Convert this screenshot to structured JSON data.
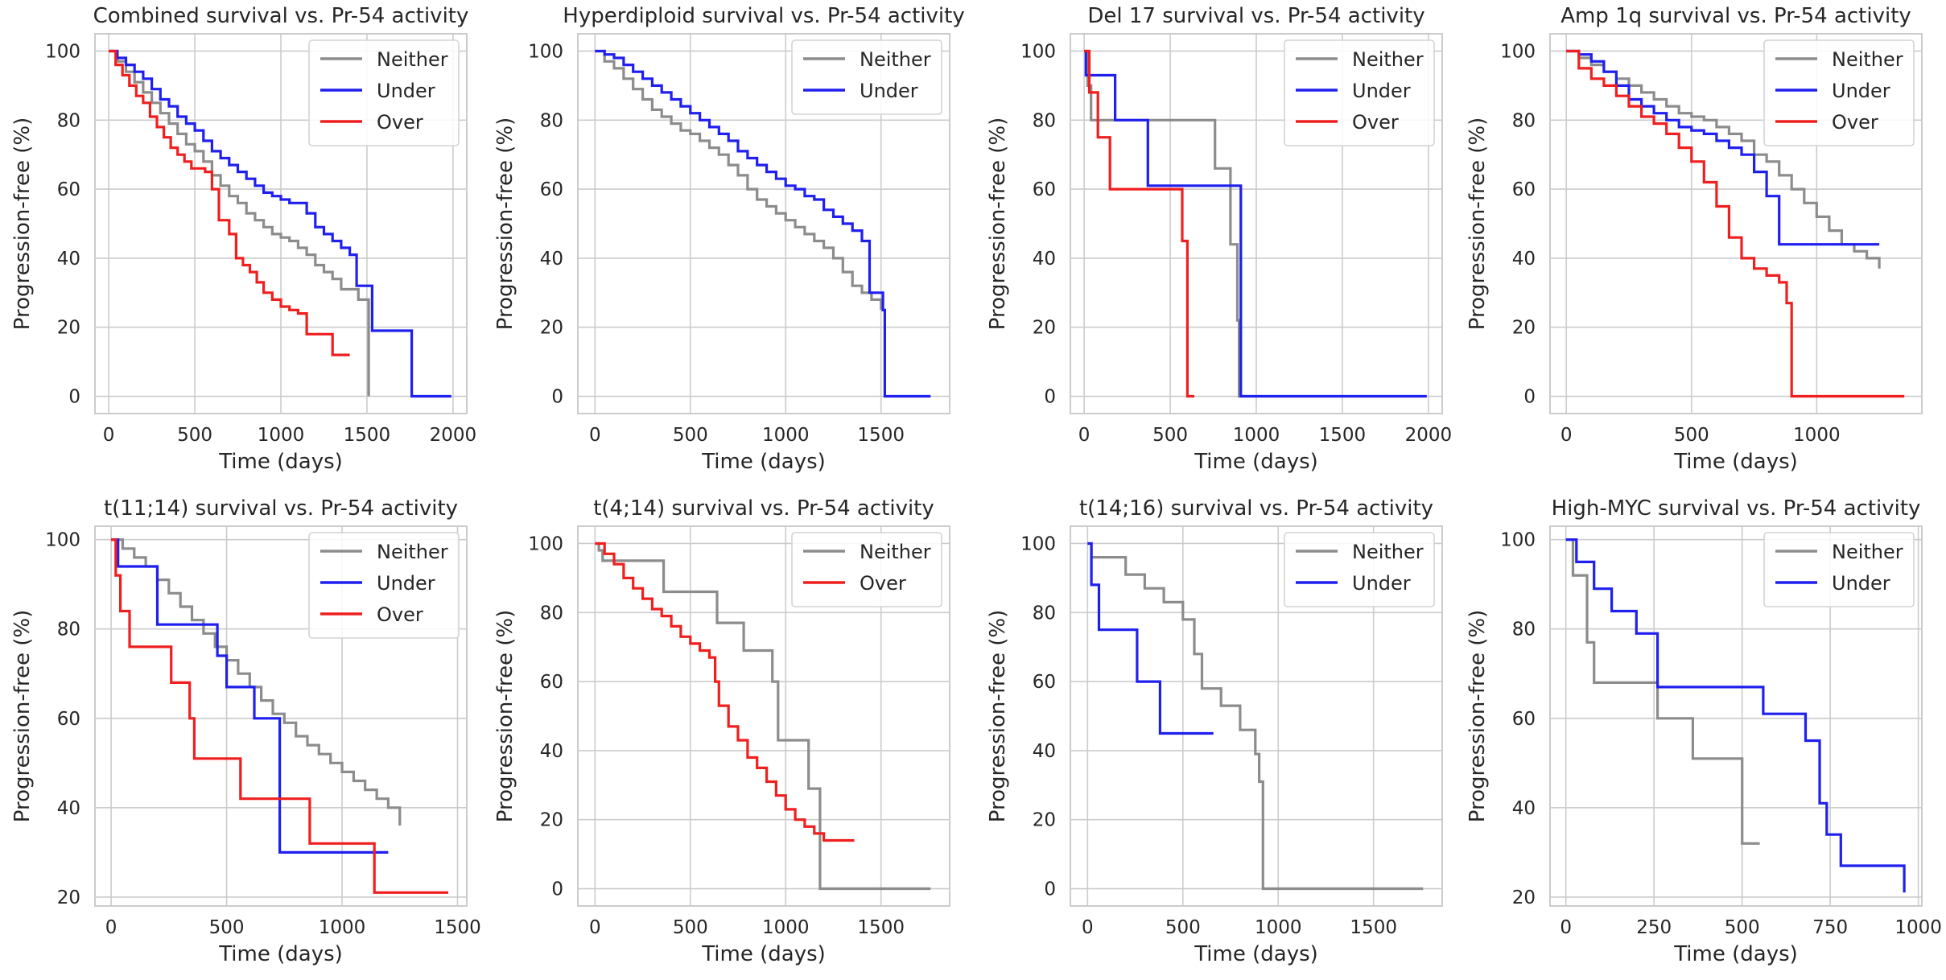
{
  "colors": {
    "Neither": "#8c8c8c",
    "Under": "#1f1ff0",
    "Over": "#f01f1f",
    "grid": "#cccccc",
    "frame": "#cccccc"
  },
  "chart_data": [
    {
      "type": "line",
      "title": "Combined survival vs. Pr-54 activity",
      "xlabel": "Time (days)",
      "ylabel": "Progression-free (%)",
      "xlim": [
        -80,
        2080
      ],
      "ylim": [
        -5,
        105
      ],
      "xticks": [
        0,
        500,
        1000,
        1500,
        2000
      ],
      "yticks": [
        0,
        20,
        40,
        60,
        80,
        100
      ],
      "legend": "top-right",
      "series": [
        {
          "name": "Neither",
          "x": [
            0,
            50,
            100,
            150,
            200,
            250,
            300,
            350,
            400,
            450,
            500,
            550,
            600,
            650,
            700,
            750,
            800,
            850,
            900,
            950,
            1000,
            1050,
            1100,
            1150,
            1200,
            1250,
            1300,
            1350,
            1400,
            1450,
            1490,
            1510
          ],
          "y": [
            100,
            97,
            94,
            91,
            88,
            85,
            82,
            79,
            76,
            73,
            71,
            68,
            64,
            61,
            58,
            56,
            53,
            51,
            49,
            47,
            46,
            45,
            43,
            41,
            38,
            36,
            34,
            31,
            31,
            28,
            28,
            0
          ]
        },
        {
          "name": "Under",
          "x": [
            0,
            50,
            100,
            150,
            200,
            250,
            300,
            350,
            400,
            450,
            500,
            550,
            600,
            650,
            700,
            750,
            800,
            850,
            900,
            950,
            1000,
            1050,
            1100,
            1150,
            1200,
            1250,
            1300,
            1350,
            1400,
            1440,
            1460,
            1500,
            1530,
            1760,
            1990
          ],
          "y": [
            100,
            98,
            96,
            94,
            92,
            89,
            86,
            84,
            81,
            79,
            77,
            74,
            71,
            69,
            67,
            65,
            63,
            61,
            59,
            58,
            57,
            56,
            56,
            53,
            49,
            47,
            45,
            43,
            41,
            32,
            32,
            32,
            19,
            0,
            0
          ]
        },
        {
          "name": "Over",
          "x": [
            0,
            40,
            80,
            120,
            160,
            200,
            240,
            280,
            320,
            360,
            400,
            440,
            480,
            520,
            560,
            600,
            640,
            700,
            740,
            780,
            820,
            860,
            900,
            950,
            1000,
            1050,
            1100,
            1150,
            1200,
            1300,
            1400
          ],
          "y": [
            100,
            96,
            93,
            90,
            87,
            85,
            81,
            78,
            75,
            72,
            70,
            68,
            66,
            66,
            65,
            60,
            51,
            47,
            40,
            38,
            36,
            33,
            30,
            28,
            26,
            25,
            24,
            18,
            18,
            12,
            12
          ]
        }
      ]
    },
    {
      "type": "line",
      "title": "Hyperdiploid survival vs. Pr-54 activity",
      "xlabel": "Time (days)",
      "ylabel": "Progression-free (%)",
      "xlim": [
        -90,
        1860
      ],
      "ylim": [
        -5,
        105
      ],
      "xticks": [
        0,
        500,
        1000,
        1500
      ],
      "yticks": [
        0,
        20,
        40,
        60,
        80,
        100
      ],
      "legend": "top-right",
      "series": [
        {
          "name": "Neither",
          "x": [
            0,
            50,
            100,
            150,
            200,
            250,
            300,
            350,
            400,
            450,
            500,
            550,
            600,
            650,
            700,
            750,
            800,
            850,
            900,
            950,
            1000,
            1050,
            1100,
            1150,
            1200,
            1250,
            1300,
            1350,
            1400,
            1450,
            1500
          ],
          "y": [
            100,
            97,
            95,
            92,
            89,
            86,
            83,
            81,
            79,
            77,
            76,
            74,
            72,
            70,
            67,
            64,
            60,
            57,
            55,
            53,
            51,
            49,
            47,
            45,
            43,
            40,
            36,
            32,
            30,
            28,
            25
          ]
        },
        {
          "name": "Under",
          "x": [
            0,
            50,
            100,
            150,
            200,
            250,
            300,
            350,
            400,
            450,
            500,
            550,
            600,
            650,
            700,
            750,
            800,
            850,
            900,
            950,
            1000,
            1050,
            1100,
            1150,
            1200,
            1250,
            1300,
            1350,
            1400,
            1440,
            1480,
            1510,
            1520,
            1760
          ],
          "y": [
            100,
            99,
            98,
            96,
            94,
            92,
            90,
            88,
            86,
            84,
            82,
            80,
            78,
            76,
            74,
            71,
            69,
            67,
            65,
            63,
            61,
            60,
            58,
            57,
            54,
            52,
            50,
            48,
            45,
            30,
            30,
            25,
            0,
            0
          ]
        }
      ]
    },
    {
      "type": "line",
      "title": "Del 17 survival vs. Pr-54 activity",
      "xlabel": "Time (days)",
      "ylabel": "Progression-free (%)",
      "xlim": [
        -80,
        2080
      ],
      "ylim": [
        -5,
        105
      ],
      "xticks": [
        0,
        500,
        1000,
        1500,
        2000
      ],
      "yticks": [
        0,
        20,
        40,
        60,
        80,
        100
      ],
      "legend": "top-right",
      "series": [
        {
          "name": "Neither",
          "x": [
            0,
            20,
            40,
            700,
            760,
            850,
            890,
            900,
            920
          ],
          "y": [
            100,
            90,
            80,
            80,
            66,
            44,
            22,
            0,
            0
          ]
        },
        {
          "name": "Under",
          "x": [
            0,
            10,
            20,
            100,
            180,
            350,
            370,
            900,
            910,
            1990
          ],
          "y": [
            100,
            93,
            93,
            93,
            80,
            80,
            61,
            61,
            0,
            0
          ]
        },
        {
          "name": "Over",
          "x": [
            0,
            30,
            80,
            150,
            360,
            570,
            600,
            640
          ],
          "y": [
            100,
            88,
            75,
            60,
            60,
            45,
            0,
            0
          ]
        }
      ]
    },
    {
      "type": "line",
      "title": "Amp 1q survival vs. Pr-54 activity",
      "xlabel": "Time (days)",
      "ylabel": "Progression-free (%)",
      "xlim": [
        -65,
        1420
      ],
      "ylim": [
        -5,
        105
      ],
      "xticks": [
        0,
        500,
        1000
      ],
      "yticks": [
        0,
        20,
        40,
        60,
        80,
        100
      ],
      "legend": "top-right",
      "series": [
        {
          "name": "Neither",
          "x": [
            0,
            50,
            100,
            150,
            200,
            250,
            300,
            350,
            400,
            450,
            500,
            550,
            600,
            650,
            700,
            750,
            800,
            850,
            900,
            950,
            1000,
            1050,
            1100,
            1150,
            1200,
            1250
          ],
          "y": [
            100,
            98,
            96,
            94,
            92,
            90,
            88,
            86,
            84,
            82,
            81,
            80,
            78,
            76,
            74,
            70,
            68,
            64,
            60,
            56,
            52,
            48,
            44,
            42,
            40,
            37
          ]
        },
        {
          "name": "Under",
          "x": [
            0,
            50,
            100,
            150,
            200,
            250,
            300,
            350,
            400,
            450,
            500,
            550,
            600,
            650,
            700,
            750,
            800,
            850,
            900,
            950,
            1000,
            1050,
            1100,
            1150,
            1200,
            1250
          ],
          "y": [
            100,
            99,
            97,
            94,
            90,
            86,
            84,
            82,
            80,
            78,
            77,
            76,
            74,
            72,
            70,
            65,
            58,
            44,
            44,
            44,
            44,
            44,
            44,
            44,
            44,
            44
          ]
        },
        {
          "name": "Over",
          "x": [
            0,
            50,
            100,
            150,
            200,
            250,
            300,
            350,
            400,
            450,
            500,
            550,
            600,
            650,
            700,
            750,
            800,
            850,
            880,
            900,
            1000,
            1100,
            1200,
            1300,
            1350
          ],
          "y": [
            100,
            95,
            92,
            90,
            87,
            84,
            81,
            79,
            76,
            72,
            68,
            62,
            55,
            46,
            40,
            37,
            35,
            33,
            27,
            0,
            0,
            0,
            0,
            0,
            0
          ]
        }
      ]
    },
    {
      "type": "line",
      "title": "t(11;14) survival vs. Pr-54 activity",
      "xlabel": "Time (days)",
      "ylabel": "Progression-free (%)",
      "xlim": [
        -70,
        1540
      ],
      "ylim": [
        18,
        103
      ],
      "xticks": [
        0,
        500,
        1000,
        1500
      ],
      "yticks": [
        20,
        40,
        60,
        80,
        100
      ],
      "legend": "top-right",
      "series": [
        {
          "name": "Neither",
          "x": [
            0,
            50,
            100,
            150,
            200,
            250,
            300,
            350,
            400,
            450,
            500,
            550,
            600,
            650,
            700,
            750,
            800,
            850,
            900,
            950,
            1000,
            1050,
            1100,
            1150,
            1200,
            1250
          ],
          "y": [
            100,
            98,
            96,
            94,
            91,
            88,
            85,
            82,
            79,
            76,
            73,
            70,
            67,
            64,
            61,
            59,
            56,
            54,
            52,
            50,
            48,
            46,
            44,
            42,
            40,
            36
          ]
        },
        {
          "name": "Under",
          "x": [
            0,
            30,
            60,
            180,
            200,
            440,
            460,
            500,
            600,
            620,
            720,
            730,
            1200
          ],
          "y": [
            100,
            94,
            94,
            94,
            81,
            81,
            74,
            67,
            67,
            60,
            60,
            30,
            30
          ]
        },
        {
          "name": "Over",
          "x": [
            0,
            20,
            40,
            80,
            150,
            260,
            340,
            360,
            540,
            560,
            840,
            860,
            1130,
            1140,
            1460
          ],
          "y": [
            100,
            92,
            84,
            76,
            76,
            68,
            60,
            51,
            51,
            42,
            42,
            32,
            32,
            21,
            21
          ]
        }
      ]
    },
    {
      "type": "line",
      "title": "t(4;14) survival vs. Pr-54 activity",
      "xlabel": "Time (days)",
      "ylabel": "Progression-free (%)",
      "xlim": [
        -90,
        1860
      ],
      "ylim": [
        -5,
        105
      ],
      "xticks": [
        0,
        500,
        1000,
        1500
      ],
      "yticks": [
        0,
        20,
        40,
        60,
        80,
        100
      ],
      "legend": "top-right",
      "series": [
        {
          "name": "Neither",
          "x": [
            0,
            20,
            40,
            350,
            360,
            620,
            640,
            750,
            780,
            930,
            960,
            1100,
            1120,
            1170,
            1180,
            1760
          ],
          "y": [
            100,
            98,
            95,
            95,
            86,
            86,
            77,
            77,
            69,
            60,
            43,
            43,
            29,
            29,
            0,
            0
          ]
        },
        {
          "name": "Over",
          "x": [
            0,
            50,
            100,
            150,
            200,
            250,
            300,
            350,
            400,
            450,
            500,
            550,
            600,
            630,
            650,
            700,
            750,
            800,
            850,
            900,
            950,
            1000,
            1050,
            1100,
            1150,
            1200,
            1250,
            1300,
            1360
          ],
          "y": [
            100,
            97,
            94,
            90,
            87,
            84,
            81,
            79,
            76,
            73,
            71,
            69,
            67,
            60,
            53,
            47,
            43,
            38,
            35,
            31,
            27,
            23,
            20,
            18,
            16,
            14,
            14,
            14,
            14
          ]
        }
      ]
    },
    {
      "type": "line",
      "title": "t(14;16) survival vs. Pr-54 activity",
      "xlabel": "Time (days)",
      "ylabel": "Progression-free (%)",
      "xlim": [
        -90,
        1860
      ],
      "ylim": [
        -5,
        105
      ],
      "xticks": [
        0,
        500,
        1000,
        1500
      ],
      "yticks": [
        0,
        20,
        40,
        60,
        80,
        100
      ],
      "legend": "top-right",
      "series": [
        {
          "name": "Neither",
          "x": [
            0,
            20,
            40,
            100,
            200,
            300,
            400,
            500,
            530,
            560,
            600,
            700,
            800,
            880,
            900,
            920,
            1760
          ],
          "y": [
            100,
            96,
            96,
            96,
            91,
            87,
            83,
            78,
            78,
            68,
            58,
            53,
            46,
            39,
            31,
            0,
            0
          ]
        },
        {
          "name": "Under",
          "x": [
            0,
            20,
            60,
            250,
            260,
            360,
            380,
            660
          ],
          "y": [
            100,
            88,
            75,
            75,
            60,
            60,
            45,
            45
          ]
        }
      ]
    },
    {
      "type": "line",
      "title": "High-MYC survival vs. Pr-54 activity",
      "xlabel": "Time (days)",
      "ylabel": "Progression-free (%)",
      "xlim": [
        -45,
        1010
      ],
      "ylim": [
        18,
        103
      ],
      "xticks": [
        0,
        250,
        500,
        750,
        1000
      ],
      "yticks": [
        20,
        40,
        60,
        80,
        100
      ],
      "legend": "top-right",
      "series": [
        {
          "name": "Neither",
          "x": [
            0,
            20,
            40,
            60,
            80,
            250,
            260,
            360,
            480,
            500,
            550
          ],
          "y": [
            100,
            92,
            92,
            77,
            68,
            68,
            60,
            51,
            51,
            32,
            32
          ]
        },
        {
          "name": "Under",
          "x": [
            0,
            30,
            80,
            130,
            200,
            260,
            450,
            560,
            680,
            720,
            740,
            780,
            960
          ],
          "y": [
            100,
            95,
            89,
            84,
            79,
            67,
            67,
            61,
            55,
            41,
            34,
            27,
            21
          ]
        }
      ]
    }
  ]
}
